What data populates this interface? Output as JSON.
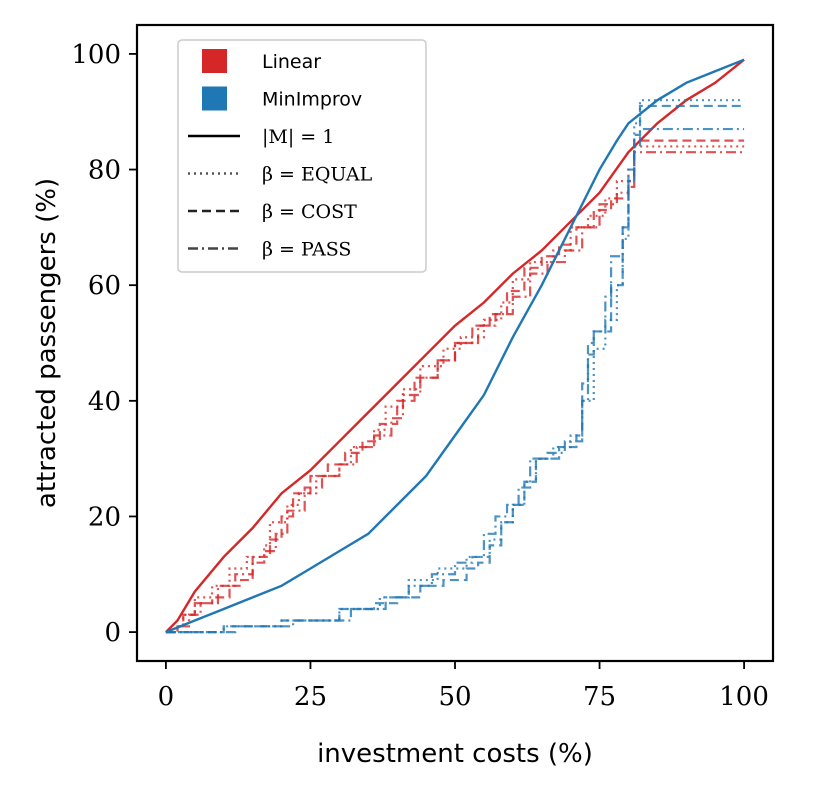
{
  "chart_data": {
    "type": "line",
    "xlabel": "investment costs (%)",
    "ylabel": "attracted passengers (%)",
    "xlim": [
      -5,
      105
    ],
    "ylim": [
      -5,
      105
    ],
    "xticks": [
      0,
      25,
      50,
      75,
      100
    ],
    "yticks": [
      0,
      20,
      40,
      60,
      80,
      100
    ],
    "x_tick_labels": [
      "0",
      "25",
      "50",
      "75",
      "100"
    ],
    "y_tick_labels": [
      "0",
      "20",
      "40",
      "60",
      "80",
      "100"
    ],
    "grid": false,
    "legend": {
      "placement": "top-left",
      "entries": [
        {
          "label": "Linear",
          "kind": "patch",
          "color": "#d62728"
        },
        {
          "label": "MinImprov",
          "kind": "patch",
          "color": "#1f77b4"
        },
        {
          "label": "|M| = 1",
          "kind": "line",
          "style": "solid",
          "color": "#000000"
        },
        {
          "label": "β = EQUAL",
          "kind": "line",
          "style": "dotted",
          "color": "#555555"
        },
        {
          "label": "β = COST",
          "kind": "line",
          "style": "dashed",
          "color": "#222222"
        },
        {
          "label": "β = PASS",
          "kind": "line",
          "style": "dashdot",
          "color": "#444444"
        }
      ]
    },
    "series": [
      {
        "name": "Linear, |M| = 1",
        "color": "#d62728",
        "style": "solid",
        "step": false,
        "points": [
          [
            0,
            0
          ],
          [
            2,
            2
          ],
          [
            5,
            7
          ],
          [
            10,
            13
          ],
          [
            15,
            18
          ],
          [
            20,
            24
          ],
          [
            25,
            28
          ],
          [
            30,
            33
          ],
          [
            35,
            38
          ],
          [
            40,
            43
          ],
          [
            45,
            48
          ],
          [
            50,
            53
          ],
          [
            55,
            57
          ],
          [
            60,
            62
          ],
          [
            65,
            66
          ],
          [
            70,
            71
          ],
          [
            75,
            76
          ],
          [
            80,
            83
          ],
          [
            85,
            88
          ],
          [
            90,
            92
          ],
          [
            95,
            95
          ],
          [
            100,
            99
          ]
        ]
      },
      {
        "name": "Linear, β = EQUAL",
        "color": "#d62728",
        "style": "dotted",
        "step": true,
        "points": [
          [
            0,
            0
          ],
          [
            2,
            1
          ],
          [
            3,
            3
          ],
          [
            5,
            6
          ],
          [
            8,
            8
          ],
          [
            11,
            11
          ],
          [
            14,
            13
          ],
          [
            17,
            15
          ],
          [
            18,
            19
          ],
          [
            21,
            22
          ],
          [
            23,
            24
          ],
          [
            26,
            27
          ],
          [
            30,
            29
          ],
          [
            32,
            32
          ],
          [
            36,
            35
          ],
          [
            38,
            39
          ],
          [
            41,
            42
          ],
          [
            44,
            46
          ],
          [
            48,
            49
          ],
          [
            51,
            51
          ],
          [
            55,
            54
          ],
          [
            58,
            57
          ],
          [
            60,
            61
          ],
          [
            63,
            64
          ],
          [
            67,
            66
          ],
          [
            70,
            70
          ],
          [
            73,
            72
          ],
          [
            76,
            75
          ],
          [
            78,
            78
          ],
          [
            80,
            80
          ],
          [
            81,
            84
          ],
          [
            100,
            84
          ]
        ]
      },
      {
        "name": "Linear, β = COST",
        "color": "#d62728",
        "style": "dashed",
        "step": true,
        "points": [
          [
            0,
            0
          ],
          [
            2,
            1
          ],
          [
            3,
            3
          ],
          [
            5,
            5
          ],
          [
            8,
            6
          ],
          [
            11,
            8
          ],
          [
            13,
            9
          ],
          [
            15,
            13
          ],
          [
            18,
            16
          ],
          [
            20,
            20
          ],
          [
            22,
            24
          ],
          [
            25,
            27
          ],
          [
            28,
            29
          ],
          [
            31,
            31
          ],
          [
            34,
            33
          ],
          [
            37,
            36
          ],
          [
            40,
            40
          ],
          [
            43,
            44
          ],
          [
            47,
            47
          ],
          [
            50,
            50
          ],
          [
            53,
            53
          ],
          [
            56,
            55
          ],
          [
            59,
            59
          ],
          [
            62,
            63
          ],
          [
            65,
            65
          ],
          [
            68,
            67
          ],
          [
            71,
            70
          ],
          [
            74,
            73
          ],
          [
            77,
            75
          ],
          [
            80,
            77
          ],
          [
            81,
            85
          ],
          [
            100,
            85
          ]
        ]
      },
      {
        "name": "Linear, β = PASS",
        "color": "#d62728",
        "style": "dashdot",
        "step": true,
        "points": [
          [
            0,
            0
          ],
          [
            2,
            1
          ],
          [
            4,
            3
          ],
          [
            6,
            5
          ],
          [
            9,
            8
          ],
          [
            12,
            10
          ],
          [
            15,
            12
          ],
          [
            17,
            14
          ],
          [
            19,
            17
          ],
          [
            21,
            21
          ],
          [
            24,
            25
          ],
          [
            27,
            27
          ],
          [
            30,
            29
          ],
          [
            33,
            32
          ],
          [
            36,
            34
          ],
          [
            39,
            37
          ],
          [
            41,
            41
          ],
          [
            44,
            44
          ],
          [
            47,
            47
          ],
          [
            50,
            50
          ],
          [
            54,
            53
          ],
          [
            57,
            55
          ],
          [
            60,
            58
          ],
          [
            63,
            62
          ],
          [
            66,
            64
          ],
          [
            69,
            66
          ],
          [
            72,
            70
          ],
          [
            75,
            74
          ],
          [
            78,
            76
          ],
          [
            80,
            78
          ],
          [
            81,
            83
          ],
          [
            100,
            83
          ]
        ]
      },
      {
        "name": "MinImprov, |M| = 1",
        "color": "#1f77b4",
        "style": "solid",
        "step": false,
        "points": [
          [
            0,
            0
          ],
          [
            5,
            2
          ],
          [
            10,
            4
          ],
          [
            15,
            6
          ],
          [
            20,
            8
          ],
          [
            25,
            11
          ],
          [
            30,
            14
          ],
          [
            35,
            17
          ],
          [
            40,
            22
          ],
          [
            45,
            27
          ],
          [
            50,
            34
          ],
          [
            55,
            41
          ],
          [
            60,
            51
          ],
          [
            65,
            60
          ],
          [
            70,
            70
          ],
          [
            75,
            80
          ],
          [
            78,
            85
          ],
          [
            80,
            88
          ],
          [
            85,
            92
          ],
          [
            90,
            95
          ],
          [
            95,
            97
          ],
          [
            100,
            99
          ]
        ]
      },
      {
        "name": "MinImprov, β = EQUAL",
        "color": "#1f77b4",
        "style": "dotted",
        "step": true,
        "points": [
          [
            0,
            0
          ],
          [
            10,
            1
          ],
          [
            20,
            2
          ],
          [
            30,
            4
          ],
          [
            37,
            6
          ],
          [
            42,
            9
          ],
          [
            47,
            11
          ],
          [
            52,
            13
          ],
          [
            56,
            16
          ],
          [
            58,
            19
          ],
          [
            60,
            22
          ],
          [
            62,
            26
          ],
          [
            64,
            30
          ],
          [
            67,
            32
          ],
          [
            70,
            34
          ],
          [
            72,
            40
          ],
          [
            74,
            49
          ],
          [
            76,
            54
          ],
          [
            78,
            60
          ],
          [
            79,
            68
          ],
          [
            80,
            78
          ],
          [
            81,
            88
          ],
          [
            82,
            92
          ],
          [
            100,
            92
          ]
        ]
      },
      {
        "name": "MinImprov, β = COST",
        "color": "#1f77b4",
        "style": "dashed",
        "step": true,
        "points": [
          [
            0,
            0
          ],
          [
            10,
            1
          ],
          [
            20,
            2
          ],
          [
            30,
            4
          ],
          [
            36,
            5
          ],
          [
            40,
            6
          ],
          [
            44,
            8
          ],
          [
            48,
            9
          ],
          [
            52,
            11
          ],
          [
            54,
            12
          ],
          [
            56,
            15
          ],
          [
            58,
            19
          ],
          [
            60,
            22
          ],
          [
            62,
            26
          ],
          [
            64,
            30
          ],
          [
            68,
            32
          ],
          [
            71,
            34
          ],
          [
            72,
            43
          ],
          [
            73,
            50
          ],
          [
            74,
            52
          ],
          [
            77,
            60
          ],
          [
            79,
            70
          ],
          [
            80,
            80
          ],
          [
            81,
            86
          ],
          [
            82,
            91
          ],
          [
            100,
            91
          ]
        ]
      },
      {
        "name": "MinImprov, β = PASS",
        "color": "#1f77b4",
        "style": "dashdot",
        "step": true,
        "points": [
          [
            0,
            0
          ],
          [
            12,
            1
          ],
          [
            22,
            2
          ],
          [
            32,
            4
          ],
          [
            38,
            6
          ],
          [
            42,
            8
          ],
          [
            46,
            10
          ],
          [
            50,
            12
          ],
          [
            53,
            13
          ],
          [
            55,
            17
          ],
          [
            57,
            20
          ],
          [
            59,
            22
          ],
          [
            61,
            25
          ],
          [
            63,
            30
          ],
          [
            66,
            31
          ],
          [
            69,
            33
          ],
          [
            72,
            40
          ],
          [
            73,
            48
          ],
          [
            74,
            52
          ],
          [
            76,
            58
          ],
          [
            77,
            65
          ],
          [
            79,
            70
          ],
          [
            80,
            78
          ],
          [
            81,
            84
          ],
          [
            82,
            87
          ],
          [
            100,
            87
          ]
        ]
      }
    ]
  }
}
